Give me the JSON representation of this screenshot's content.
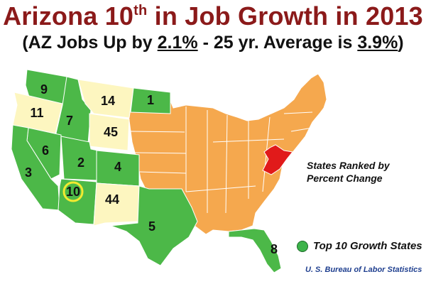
{
  "header": {
    "title_prefix": "Arizona 10",
    "title_sup": "th",
    "title_suffix": " in Job Growth in 2013",
    "subtitle_pre": "(AZ Jobs Up by ",
    "subtitle_val1": "2.1%",
    "subtitle_mid": " - 25 yr. Average is ",
    "subtitle_val2": "3.9%",
    "subtitle_post": ")"
  },
  "annotation": {
    "line1": "States Ranked by",
    "line2": "Percent Change"
  },
  "legend": {
    "label": "Top 10 Growth States",
    "color": "#3db34a"
  },
  "source": "U. S. Bureau of Labor Statistics",
  "colors": {
    "top10_green": "#4cb848",
    "bottom_yellow": "#fdf6c0",
    "middle_orange": "#f5a84e",
    "highlight_red": "#e11a1a",
    "title_red": "#8b1a1a"
  },
  "states": {
    "WA": {
      "rank": "9"
    },
    "OR": {
      "rank": "11"
    },
    "ID": {
      "rank": "7"
    },
    "MT": {
      "rank": "14"
    },
    "ND": {
      "rank": "1"
    },
    "WY": {
      "rank": "45"
    },
    "NV": {
      "rank": "6"
    },
    "CA": {
      "rank": "3"
    },
    "UT": {
      "rank": "2"
    },
    "CO": {
      "rank": "4"
    },
    "AZ": {
      "rank": "10"
    },
    "NM": {
      "rank": "44"
    },
    "TX": {
      "rank": "5"
    },
    "FL": {
      "rank": "8"
    }
  }
}
